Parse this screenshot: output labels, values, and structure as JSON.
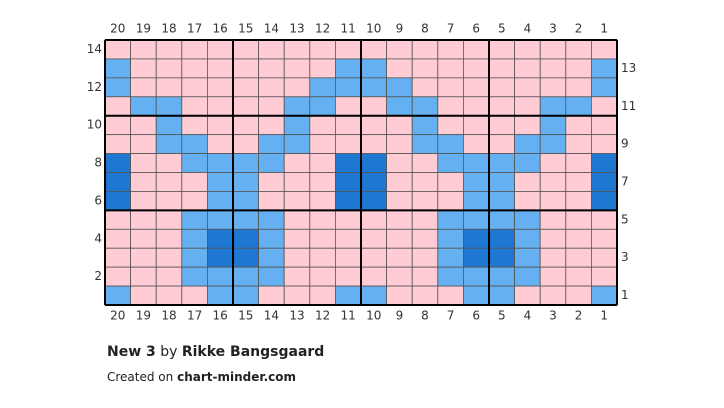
{
  "chart": {
    "column_numbers_top": [
      20,
      19,
      18,
      17,
      16,
      15,
      14,
      13,
      12,
      11,
      10,
      9,
      8,
      7,
      6,
      5,
      4,
      3,
      2,
      1
    ],
    "column_numbers_bottom": [
      20,
      19,
      18,
      17,
      16,
      15,
      14,
      13,
      12,
      11,
      10,
      9,
      8,
      7,
      6,
      5,
      4,
      3,
      2,
      1
    ],
    "row_numbers_left": [
      14,
      12,
      10,
      8,
      6,
      4,
      2
    ],
    "row_numbers_right": [
      13,
      11,
      9,
      7,
      5,
      3,
      1
    ]
  },
  "footer": {
    "title": "New 3",
    "by": "by",
    "author": "Rikke Bangsgaard",
    "created_on": "Created on",
    "site": "chart-minder.com"
  }
}
